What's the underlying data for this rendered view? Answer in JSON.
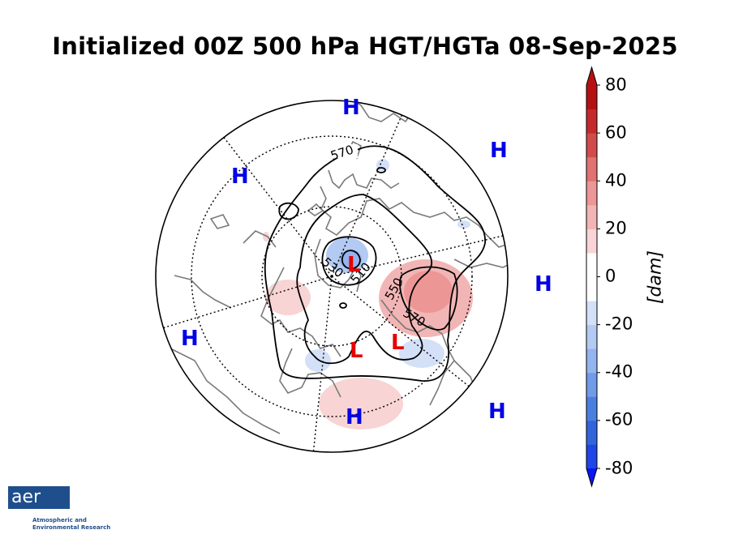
{
  "title": "Initialized 00Z 500 hPa HGT/HGTa 08-Sep-2025",
  "colorbar": {
    "ticks": [
      "80",
      "60",
      "40",
      "20",
      "0",
      "-20",
      "-40",
      "-60",
      "-80"
    ],
    "unit": "[dam]",
    "levels": [
      -80,
      -70,
      -60,
      -50,
      -40,
      -30,
      -20,
      -10,
      0,
      10,
      20,
      30,
      40,
      50,
      60,
      70,
      80
    ],
    "colors": [
      "#0a14f5",
      "#1f46e6",
      "#3264dc",
      "#4a7fe0",
      "#6f9be8",
      "#93b4ee",
      "#b3caf2",
      "#d3e0f7",
      "#ffffff",
      "#ffffff",
      "#f8d4d4",
      "#f2b5b5",
      "#ec9696",
      "#e07272",
      "#d14b4b",
      "#c42a2a",
      "#b51111"
    ]
  },
  "contour_labels": [
    "570",
    "530",
    "510",
    "550",
    "570"
  ],
  "pressure_centers": [
    {
      "label": "H",
      "kind": "high"
    },
    {
      "label": "H",
      "kind": "high"
    },
    {
      "label": "H",
      "kind": "high"
    },
    {
      "label": "H",
      "kind": "high"
    },
    {
      "label": "H",
      "kind": "high"
    },
    {
      "label": "H",
      "kind": "high"
    },
    {
      "label": "H",
      "kind": "high"
    },
    {
      "label": "L",
      "kind": "low"
    },
    {
      "label": "L",
      "kind": "low"
    },
    {
      "label": "L",
      "kind": "low"
    }
  ],
  "colors": {
    "high": "#0000e6",
    "low": "#e60000",
    "coast": "#7a7a7a"
  },
  "logo": {
    "name": "aer",
    "caption": "Atmospheric and\nEnvironmental Research"
  }
}
